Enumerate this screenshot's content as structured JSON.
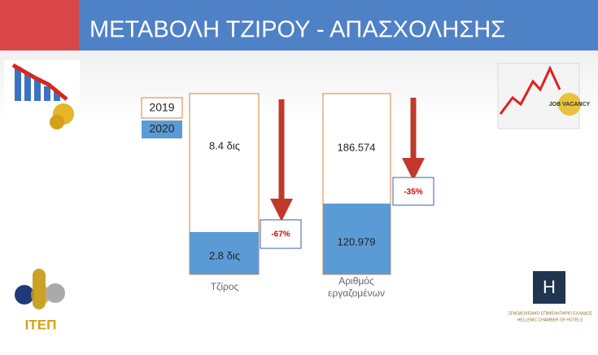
{
  "header": {
    "title": "ΜΕΤΑΒΟΛΗ ΤΖΙΡΟΥ - ΑΠΑΣΧΟΛΗΣΗΣ"
  },
  "legend": [
    "2019",
    "2020"
  ],
  "panels": [
    {
      "label": "Τζίρος",
      "value_2019": "8.4 δις",
      "value_2020": "2.8 δις",
      "change": "-67%"
    },
    {
      "label_lines": [
        "Αριθμός",
        "εργαζομένων"
      ],
      "value_2019": "186.574",
      "value_2020": "120.979",
      "change": "-35%"
    }
  ],
  "logos": {
    "left": "ΙΤΕΠ",
    "right_letter": "H",
    "right_line1": "ΞΕΝΟΔΟΧΕΙΑΚΟ ΕΠΙΜΕΛΗΤΗΡΙΟ ΕΛΛΑΔΟΣ",
    "right_line2": "HELLENIC CHAMBER OF HOTELS",
    "vacancy": "JOB VACANCY"
  }
}
